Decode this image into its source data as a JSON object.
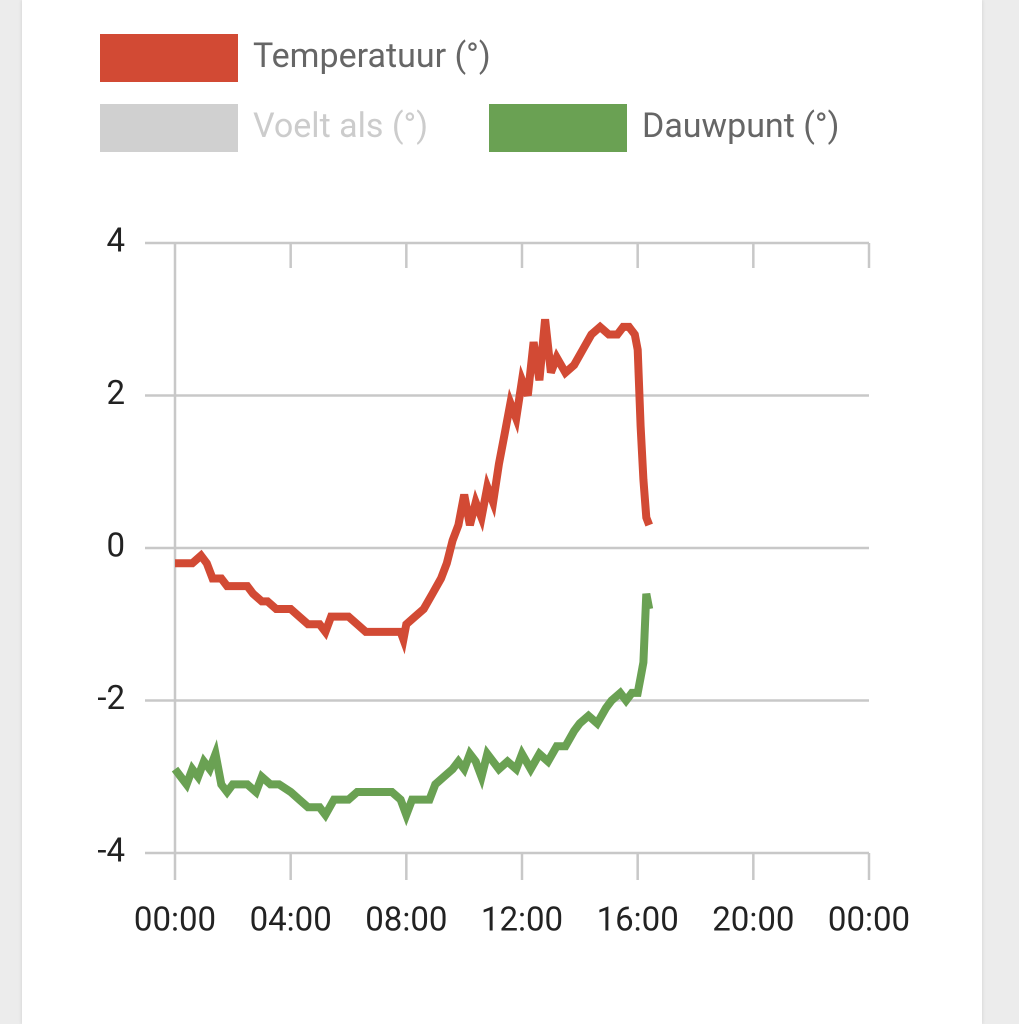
{
  "chart_data": {
    "type": "line",
    "xlim": [
      0,
      24
    ],
    "xticks": [
      {
        "value": 0,
        "label": "00:00"
      },
      {
        "value": 4,
        "label": "04:00"
      },
      {
        "value": 8,
        "label": "08:00"
      },
      {
        "value": 12,
        "label": "12:00"
      },
      {
        "value": 16,
        "label": "16:00"
      },
      {
        "value": 20,
        "label": "20:00"
      },
      {
        "value": 24,
        "label": "00:00"
      }
    ],
    "ylim": [
      -4,
      4
    ],
    "yticks": [
      -4,
      -2,
      0,
      2,
      4
    ],
    "grid": true,
    "legend": "top",
    "series": [
      {
        "name": "Temperatuur (°)",
        "color": "#d24a34",
        "hidden": false,
        "x": [
          0,
          0.3,
          0.6,
          0.9,
          1.1,
          1.3,
          1.6,
          1.8,
          2.2,
          2.5,
          2.7,
          3.0,
          3.2,
          3.5,
          4.0,
          4.3,
          4.6,
          5.0,
          5.2,
          5.4,
          6.0,
          6.3,
          6.6,
          7.5,
          7.8,
          7.9,
          8.0,
          8.3,
          8.6,
          8.9,
          9.2,
          9.4,
          9.6,
          9.8,
          10.0,
          10.2,
          10.4,
          10.6,
          10.8,
          11.0,
          11.2,
          11.4,
          11.6,
          11.8,
          12.0,
          12.2,
          12.4,
          12.6,
          12.8,
          13.0,
          13.2,
          13.5,
          13.8,
          14.1,
          14.4,
          14.7,
          15.0,
          15.3,
          15.5,
          15.7,
          15.9,
          16.0,
          16.1,
          16.2,
          16.3,
          16.4
        ],
        "values": [
          -0.2,
          -0.2,
          -0.2,
          -0.1,
          -0.2,
          -0.4,
          -0.4,
          -0.5,
          -0.5,
          -0.5,
          -0.6,
          -0.7,
          -0.7,
          -0.8,
          -0.8,
          -0.9,
          -1.0,
          -1.0,
          -1.1,
          -0.9,
          -0.9,
          -1.0,
          -1.1,
          -1.1,
          -1.1,
          -1.2,
          -1.0,
          -0.9,
          -0.8,
          -0.6,
          -0.4,
          -0.2,
          0.1,
          0.3,
          0.7,
          0.3,
          0.6,
          0.4,
          0.8,
          0.6,
          1.1,
          1.5,
          1.9,
          1.7,
          2.2,
          2.0,
          2.7,
          2.2,
          3.0,
          2.3,
          2.5,
          2.3,
          2.4,
          2.6,
          2.8,
          2.9,
          2.8,
          2.8,
          2.9,
          2.9,
          2.8,
          2.6,
          1.6,
          0.9,
          0.4,
          0.3
        ]
      },
      {
        "name": "Voelt als (°)",
        "color": "#d0d0d0",
        "hidden": true,
        "x": [],
        "values": []
      },
      {
        "name": "Dauwpunt (°)",
        "color": "#6aa153",
        "hidden": false,
        "x": [
          0,
          0.2,
          0.4,
          0.6,
          0.8,
          1.0,
          1.2,
          1.4,
          1.6,
          1.8,
          2.0,
          2.5,
          2.8,
          3.0,
          3.3,
          3.6,
          4.0,
          4.3,
          4.6,
          5.0,
          5.2,
          5.5,
          6.0,
          6.3,
          6.6,
          7.0,
          7.5,
          7.8,
          8.0,
          8.2,
          8.5,
          8.8,
          9.0,
          9.3,
          9.6,
          9.8,
          10.0,
          10.2,
          10.4,
          10.6,
          10.8,
          11.0,
          11.2,
          11.5,
          11.8,
          12.0,
          12.3,
          12.6,
          12.9,
          13.2,
          13.5,
          13.8,
          14.0,
          14.3,
          14.6,
          14.9,
          15.1,
          15.4,
          15.6,
          15.8,
          16.0,
          16.1,
          16.2,
          16.3,
          16.4
        ],
        "values": [
          -2.9,
          -3.0,
          -3.1,
          -2.9,
          -3.0,
          -2.8,
          -2.9,
          -2.7,
          -3.1,
          -3.2,
          -3.1,
          -3.1,
          -3.2,
          -3.0,
          -3.1,
          -3.1,
          -3.2,
          -3.3,
          -3.4,
          -3.4,
          -3.5,
          -3.3,
          -3.3,
          -3.2,
          -3.2,
          -3.2,
          -3.2,
          -3.3,
          -3.5,
          -3.3,
          -3.3,
          -3.3,
          -3.1,
          -3.0,
          -2.9,
          -2.8,
          -2.9,
          -2.7,
          -2.8,
          -3.0,
          -2.7,
          -2.8,
          -2.9,
          -2.8,
          -2.9,
          -2.7,
          -2.9,
          -2.7,
          -2.8,
          -2.6,
          -2.6,
          -2.4,
          -2.3,
          -2.2,
          -2.3,
          -2.1,
          -2.0,
          -1.9,
          -2.0,
          -1.9,
          -1.9,
          -1.7,
          -1.5,
          -0.6,
          -0.8
        ]
      }
    ]
  }
}
